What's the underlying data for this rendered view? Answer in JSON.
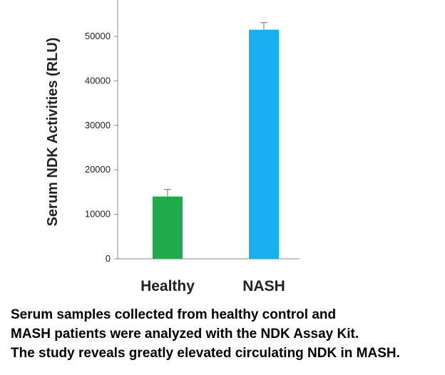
{
  "chart_data": {
    "type": "bar",
    "title": "",
    "xlabel": "",
    "ylabel": "Serum NDK Activities (RLU)",
    "categories": [
      "Healthy",
      "NASH"
    ],
    "values": [
      14000,
      51500
    ],
    "errors": [
      1600,
      1600
    ],
    "colors": [
      "#1faa4b",
      "#17aff0"
    ],
    "ylim": [
      0,
      60000
    ],
    "yticks": [
      0,
      10000,
      20000,
      30000,
      40000,
      50000
    ],
    "grid": false,
    "legend": "none"
  },
  "caption": {
    "lines": [
      "Serum samples collected from healthy control and",
      "MASH patients were analyzed with the NDK Assay Kit.",
      "The study reveals greatly elevated circulating NDK in MASH."
    ]
  }
}
